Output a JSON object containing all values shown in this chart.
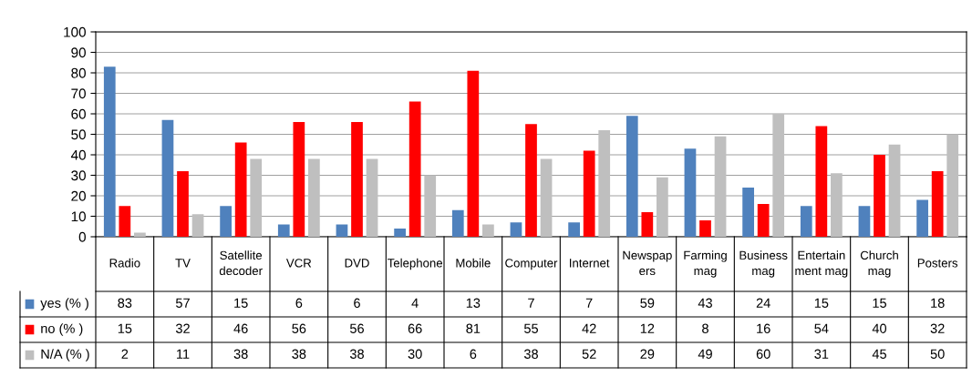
{
  "chart_data": {
    "type": "bar",
    "categories": [
      "Radio",
      "TV",
      "Satellite decoder",
      "VCR",
      "DVD",
      "Telephone",
      "Mobile",
      "Computer",
      "Internet",
      "Newspapers",
      "Farming mag",
      "Business mag",
      "Entertainment mag",
      "Church mag",
      "Posters"
    ],
    "series": [
      {
        "name": "yes (% )",
        "color": "#4f81bd",
        "values": [
          83,
          57,
          15,
          6,
          6,
          4,
          13,
          7,
          7,
          59,
          43,
          24,
          15,
          15,
          18
        ]
      },
      {
        "name": "no (% )",
        "color": "#ff0000",
        "values": [
          15,
          32,
          46,
          56,
          56,
          66,
          81,
          55,
          42,
          12,
          8,
          16,
          54,
          40,
          32
        ]
      },
      {
        "name": "N/A (% )",
        "color": "#bfbfbf",
        "values": [
          2,
          11,
          38,
          38,
          38,
          30,
          6,
          38,
          52,
          29,
          49,
          60,
          31,
          45,
          50
        ]
      }
    ],
    "ylim": [
      0,
      100
    ],
    "yticks": [
      0,
      10,
      20,
      30,
      40,
      50,
      60,
      70,
      80,
      90,
      100
    ],
    "grid": "y",
    "data_labels": true,
    "legend": "left"
  }
}
